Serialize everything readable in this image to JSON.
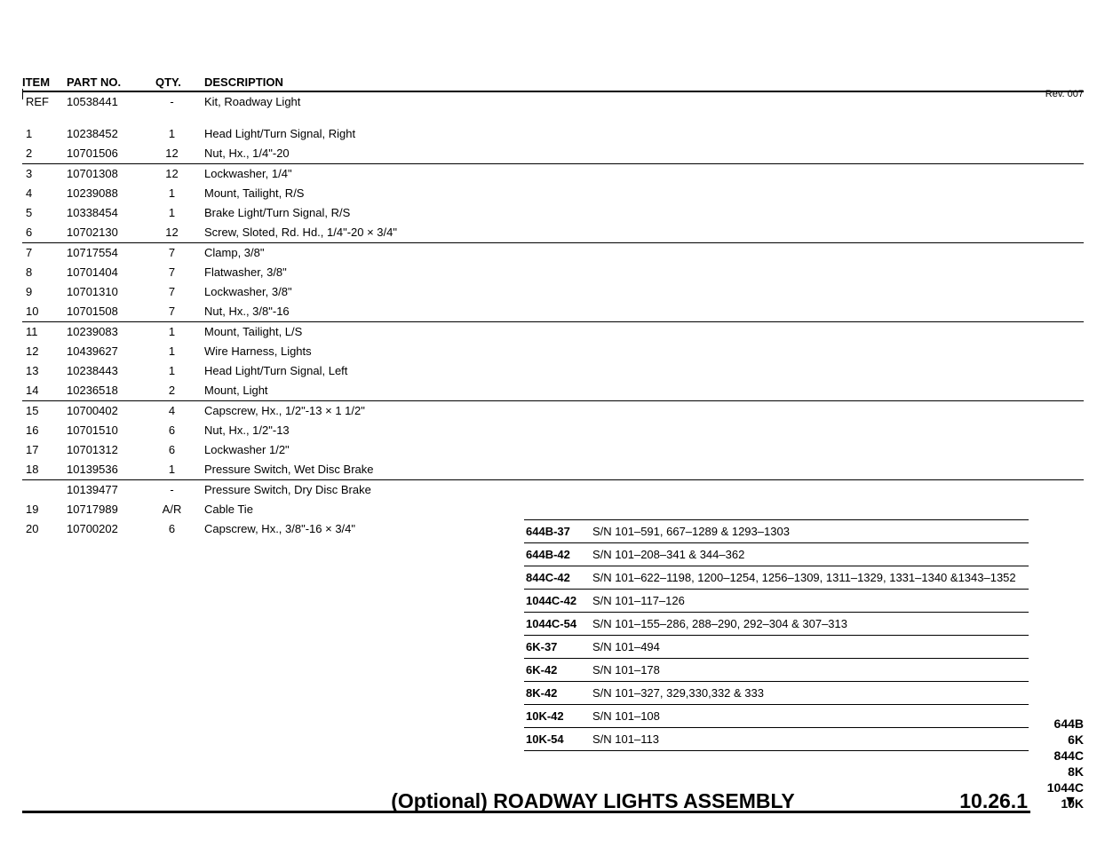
{
  "table": {
    "headers": {
      "item": "ITEM",
      "partno": "PART NO.",
      "qty": "QTY.",
      "desc": "DESCRIPTION"
    },
    "rows": [
      {
        "item": "REF",
        "partno": "10538441",
        "qty": "-",
        "desc": "Kit, Roadway Light",
        "divider": false,
        "spacer_after": true
      },
      {
        "item": "1",
        "partno": "10238452",
        "qty": "1",
        "desc": "Head Light/Turn Signal, Right",
        "divider": false
      },
      {
        "item": "2",
        "partno": "10701506",
        "qty": "12",
        "desc": "Nut, Hx., 1/4\"-20",
        "divider": false
      },
      {
        "item": "3",
        "partno": "10701308",
        "qty": "12",
        "desc": "Lockwasher, 1/4\"",
        "divider": true
      },
      {
        "item": "4",
        "partno": "10239088",
        "qty": "1",
        "desc": "Mount, Tailight, R/S",
        "divider": false
      },
      {
        "item": "5",
        "partno": "10338454",
        "qty": "1",
        "desc": "Brake Light/Turn Signal, R/S",
        "divider": false
      },
      {
        "item": "6",
        "partno": "10702130",
        "qty": "12",
        "desc": "Screw, Sloted, Rd. Hd., 1/4\"-20 × 3/4\"",
        "divider": false
      },
      {
        "item": "7",
        "partno": "10717554",
        "qty": "7",
        "desc": "Clamp, 3/8\"",
        "divider": true
      },
      {
        "item": "8",
        "partno": "10701404",
        "qty": "7",
        "desc": "Flatwasher, 3/8\"",
        "divider": false
      },
      {
        "item": "9",
        "partno": "10701310",
        "qty": "7",
        "desc": "Lockwasher, 3/8\"",
        "divider": false
      },
      {
        "item": "10",
        "partno": "10701508",
        "qty": "7",
        "desc": "Nut, Hx., 3/8\"-16",
        "divider": false
      },
      {
        "item": "11",
        "partno": "10239083",
        "qty": "1",
        "desc": "Mount, Tailight, L/S",
        "divider": true
      },
      {
        "item": "12",
        "partno": "10439627",
        "qty": "1",
        "desc": "Wire Harness, Lights",
        "divider": false
      },
      {
        "item": "13",
        "partno": "10238443",
        "qty": "1",
        "desc": "Head Light/Turn Signal, Left",
        "divider": false
      },
      {
        "item": "14",
        "partno": "10236518",
        "qty": "2",
        "desc": "Mount, Light",
        "divider": false
      },
      {
        "item": "15",
        "partno": "10700402",
        "qty": "4",
        "desc": "Capscrew, Hx., 1/2\"-13 × 1 1/2\"",
        "divider": true
      },
      {
        "item": "16",
        "partno": "10701510",
        "qty": "6",
        "desc": "Nut, Hx., 1/2\"-13",
        "divider": false
      },
      {
        "item": "17",
        "partno": "10701312",
        "qty": "6",
        "desc": "Lockwasher 1/2\"",
        "divider": false
      },
      {
        "item": "18",
        "partno": "10139536",
        "qty": "1",
        "desc": "Pressure Switch, Wet Disc Brake",
        "divider": false
      },
      {
        "item": "",
        "partno": "10139477",
        "qty": "-",
        "desc": "Pressure Switch, Dry Disc Brake",
        "divider": true
      },
      {
        "item": "19",
        "partno": "10717989",
        "qty": "A/R",
        "desc": "Cable Tie",
        "divider": false
      },
      {
        "item": "20",
        "partno": "10700202",
        "qty": "6",
        "desc": "Capscrew, Hx., 3/8\"-16 × 3/4\"",
        "divider": false
      }
    ]
  },
  "serials": [
    {
      "model": "644B-37",
      "text": "S/N 101–591, 667–1289 & 1293–1303"
    },
    {
      "model": "644B-42",
      "text": "S/N 101–208–341 & 344–362"
    },
    {
      "model": "844C-42",
      "text": "S/N 101–622–1198, 1200–1254, 1256–1309, 1311–1329, 1331–1340 &1343–1352"
    },
    {
      "model": "1044C-42",
      "text": "S/N 101–117–126"
    },
    {
      "model": "1044C-54",
      "text": "S/N 101–155–286, 288–290, 292–304 & 307–313"
    },
    {
      "model": "6K-37",
      "text": "S/N 101–494"
    },
    {
      "model": "6K-42",
      "text": "S/N 101–178"
    },
    {
      "model": "8K-42",
      "text": "S/N 101–327, 329,330,332 & 333"
    },
    {
      "model": "10K-42",
      "text": "S/N 101–108"
    },
    {
      "model": "10K-54",
      "text": "S/N 101–113"
    }
  ],
  "revision": "Rev. 007",
  "models": [
    "644B",
    "6K",
    "844C",
    "8K",
    "1044C",
    "10K"
  ],
  "footer": {
    "title": "(Optional) ROADWAY LIGHTS ASSEMBLY",
    "pagenum": "10.26.1"
  }
}
